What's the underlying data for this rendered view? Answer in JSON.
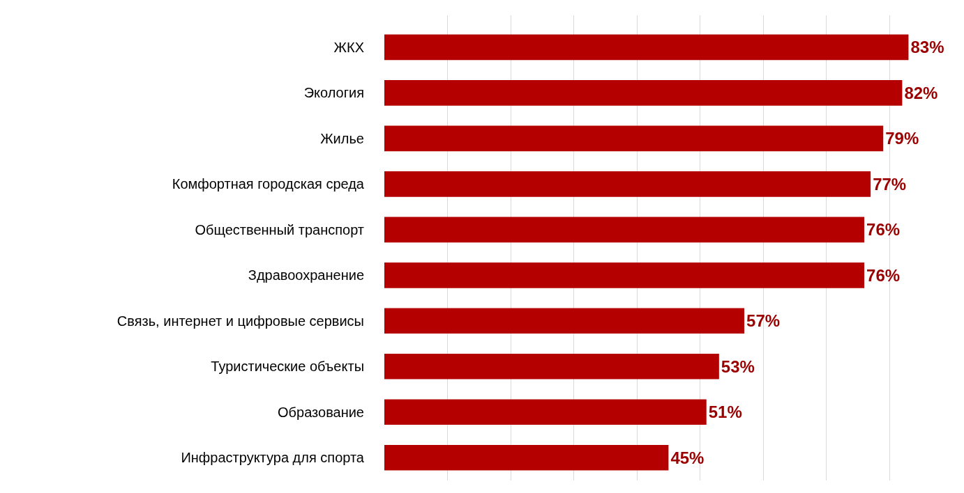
{
  "chart_data": {
    "type": "bar",
    "orientation": "horizontal",
    "categories": [
      "ЖКХ",
      "Экология",
      "Жилье",
      "Комфортная городская среда",
      "Общественный транспорт",
      "Здравоохранение",
      "Связь, интернет и цифровые сервисы",
      "Туристические объекты",
      "Образование",
      "Инфраструктура для спорта"
    ],
    "values": [
      83,
      82,
      79,
      77,
      76,
      76,
      57,
      53,
      51,
      45
    ],
    "value_labels": [
      "83%",
      "82%",
      "79%",
      "77%",
      "76%",
      "76%",
      "57%",
      "53%",
      "51%",
      "45%"
    ],
    "color": "#b50000",
    "grid": "x",
    "tick_labels": "y",
    "legend": false
  }
}
